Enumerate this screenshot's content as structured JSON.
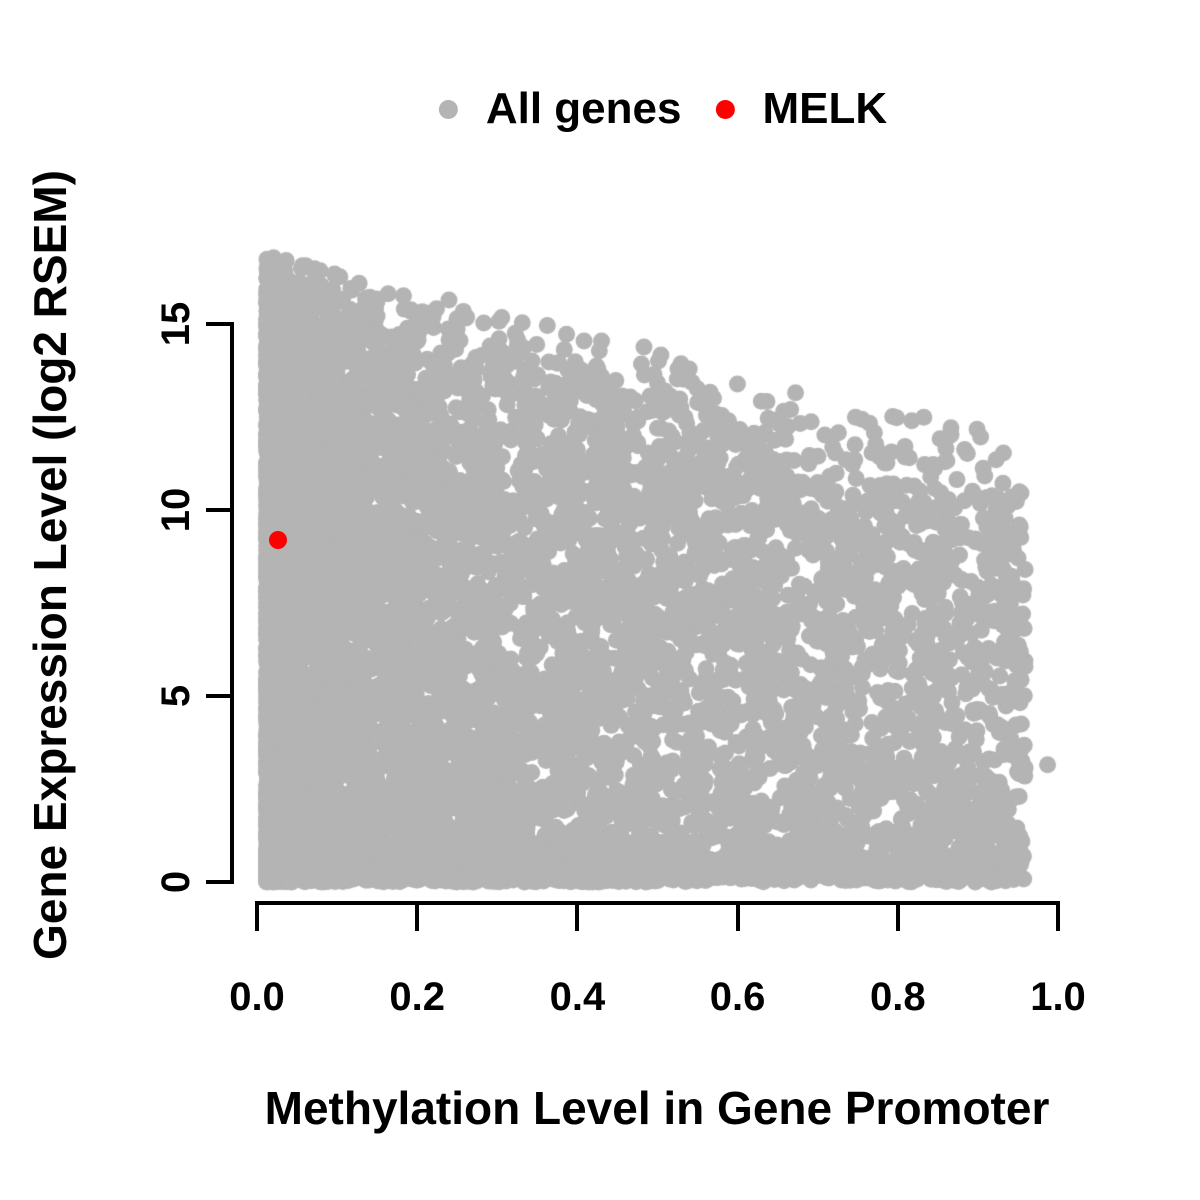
{
  "figure": {
    "background_color": "#ffffff",
    "text_color": "#000000"
  },
  "legend": {
    "position": "top-center",
    "items": [
      {
        "label": "All genes",
        "color": "#b4b4b4",
        "marker": "filled-circle"
      },
      {
        "label": "MELK",
        "color": "#ff0000",
        "marker": "filled-circle"
      }
    ]
  },
  "axes": {
    "x": {
      "title": "Methylation Level in Gene Promoter",
      "range": [
        0.0,
        1.0
      ],
      "ticks": [
        0.0,
        0.2,
        0.4,
        0.6,
        0.8,
        1.0
      ],
      "tick_labels": [
        "0.0",
        "0.2",
        "0.4",
        "0.6",
        "0.8",
        "1.0"
      ]
    },
    "y": {
      "title": "Gene Expression Level (log2 RSEM)",
      "range": [
        0,
        15
      ],
      "ticks": [
        0,
        5,
        10,
        15
      ],
      "tick_labels": [
        "0",
        "5",
        "10",
        "15"
      ]
    }
  },
  "chart_data": {
    "type": "scatter",
    "title": "",
    "xlabel": "Methylation Level in Gene Promoter",
    "ylabel": "Gene Expression Level (log2 RSEM)",
    "xlim": [
      0.0,
      1.0
    ],
    "ylim": [
      0,
      16.9
    ],
    "grid": false,
    "legend_position": "top",
    "series": [
      {
        "name": "All genes",
        "color": "#b4b4b4",
        "marker_radius_px": 8.5,
        "n_points": 9200,
        "note": "dense cloud of ~9000 overlapping genes; x spans 0.012-0.962, y spans 0-16.8; density highest at low methylation; upper expression envelope declines from ~16.8 at x~0.03 to ~12 at x~0.95; solid band of near-zero expression along y=0 for all x",
        "distribution": {
          "seed": 42,
          "x_min": 0.012,
          "x_span": 0.948,
          "x_power": 2.2,
          "p_zero": 0.15,
          "zero_sigma": 0.5,
          "p_tail": 0.07,
          "tail_scale": 1.1,
          "y_power": 1.08,
          "dense_top_at_0": 14.8,
          "dense_top_slope": -5.6,
          "dense_top_jitter": 0.35,
          "max_top_at_0": 16.9,
          "max_top_slope": -5.2,
          "y_max": 16.85
        },
        "notable_points": [
          {
            "x": 0.987,
            "y": 3.15
          }
        ]
      },
      {
        "name": "MELK",
        "color": "#ff0000",
        "marker_radius_px": 9,
        "points": [
          {
            "x": 0.026,
            "y": 9.2
          }
        ]
      }
    ]
  }
}
